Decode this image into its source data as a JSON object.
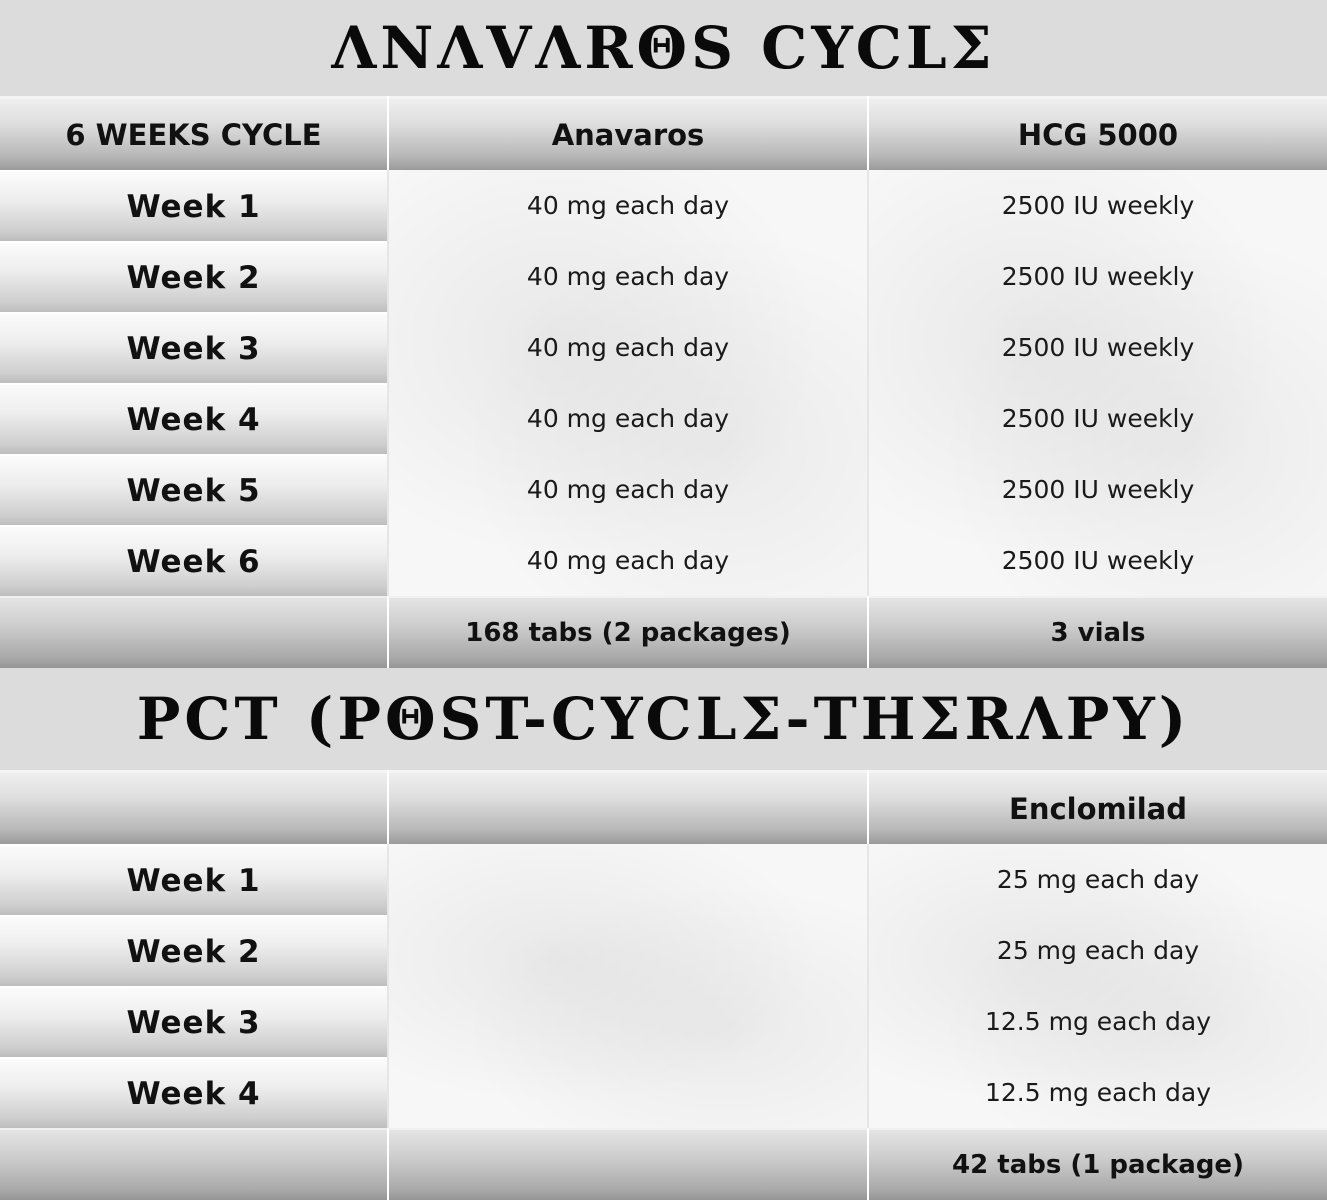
{
  "cycle": {
    "title": "ΛNΛVΛRΘS CYCLΣ",
    "headers": [
      "6 WEEKS CYCLE",
      "Anavaros",
      "HCG 5000"
    ],
    "rows": [
      {
        "week": "Week  1",
        "anavaros": "40 mg each day",
        "hcg": "2500 IU weekly"
      },
      {
        "week": "Week  2",
        "anavaros": "40 mg each day",
        "hcg": "2500 IU weekly"
      },
      {
        "week": "Week  3",
        "anavaros": "40 mg each day",
        "hcg": "2500 IU weekly"
      },
      {
        "week": "Week  4",
        "anavaros": "40 mg each day",
        "hcg": "2500 IU weekly"
      },
      {
        "week": "Week  5",
        "anavaros": "40 mg each day",
        "hcg": "2500 IU weekly"
      },
      {
        "week": "Week  6",
        "anavaros": "40 mg each day",
        "hcg": "2500 IU weekly"
      }
    ],
    "totals": [
      "",
      "168 tabs (2 packages)",
      "3 vials"
    ]
  },
  "pct": {
    "title": "PCT (PΘST-CYCLΣ-THΣRΛPY)",
    "headers": [
      "",
      "",
      "Enclomilad"
    ],
    "rows": [
      {
        "week": "Week  1",
        "middle": "",
        "enclomilad": "25 mg each day"
      },
      {
        "week": "Week  2",
        "middle": "",
        "enclomilad": "25 mg each day"
      },
      {
        "week": "Week  3",
        "middle": "",
        "enclomilad": "12.5 mg each day"
      },
      {
        "week": "Week  4",
        "middle": "",
        "enclomilad": "12.5 mg each day"
      }
    ],
    "totals": [
      "",
      "",
      "42 tabs (1 package)"
    ]
  }
}
